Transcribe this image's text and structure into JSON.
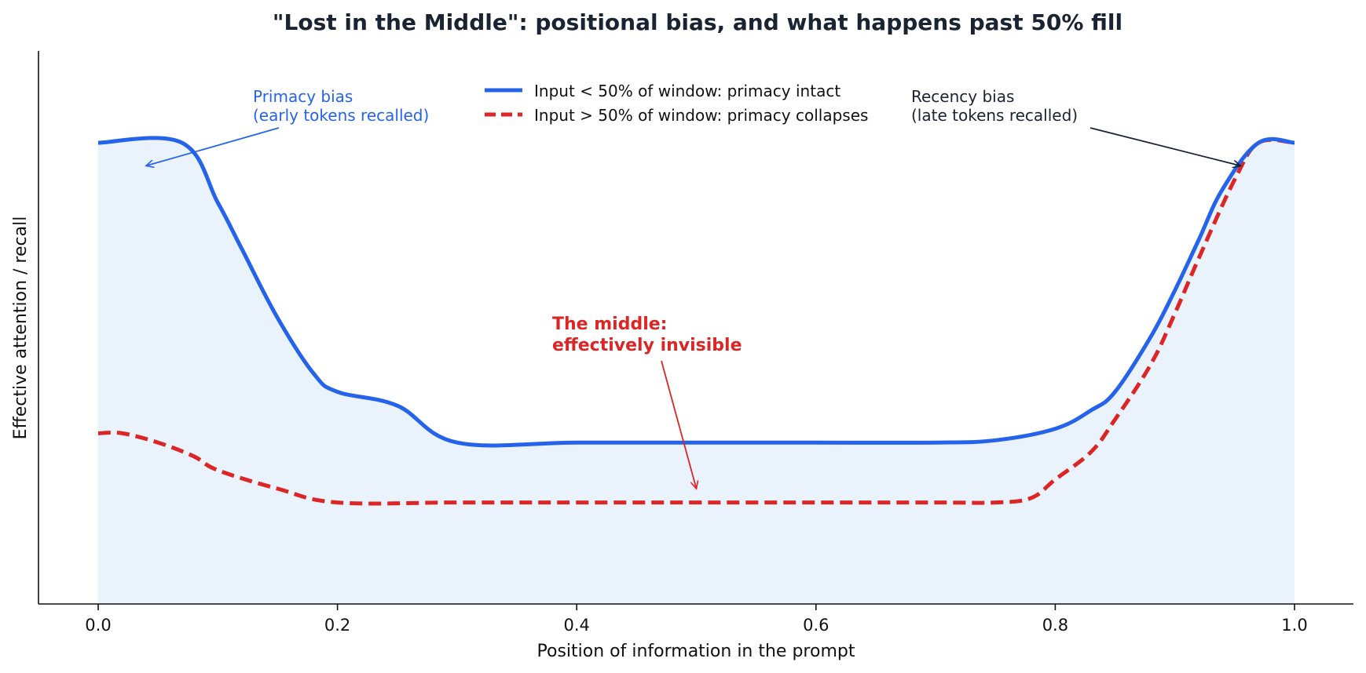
{
  "chart_data": {
    "type": "line",
    "title": "\"Lost in the Middle\": positional bias, and what happens past 50% fill",
    "xlabel": "Position of information in the prompt",
    "ylabel": "Effective attention / recall",
    "xlim": [
      -0.05,
      1.05
    ],
    "ylim": [
      0,
      1.2
    ],
    "xticks": [
      "0.0",
      "0.2",
      "0.4",
      "0.6",
      "0.8",
      "1.0"
    ],
    "yticks": [],
    "grid": false,
    "legend_position": "top-center",
    "series": [
      {
        "name": "Input < 50% of window: primacy intact",
        "color": "#2563eb",
        "style": "solid",
        "fill": "#eaf2fc",
        "x": [
          0.0,
          0.07,
          0.1,
          0.12,
          0.15,
          0.18,
          0.2,
          0.25,
          0.3,
          0.4,
          0.5,
          0.6,
          0.7,
          0.75,
          0.8,
          0.83,
          0.85,
          0.88,
          0.9,
          0.92,
          0.94,
          0.97,
          1.0
        ],
        "y": [
          1.0,
          1.0,
          0.87,
          0.77,
          0.62,
          0.5,
          0.46,
          0.43,
          0.35,
          0.35,
          0.35,
          0.35,
          0.35,
          0.355,
          0.38,
          0.42,
          0.46,
          0.58,
          0.68,
          0.79,
          0.9,
          1.0,
          1.0
        ]
      },
      {
        "name": "Input > 50% of window: primacy collapses",
        "color": "#dc2626",
        "style": "dashed",
        "x": [
          0.0,
          0.02,
          0.05,
          0.08,
          0.1,
          0.15,
          0.2,
          0.3,
          0.4,
          0.5,
          0.6,
          0.7,
          0.75,
          0.78,
          0.8,
          0.83,
          0.85,
          0.88,
          0.9,
          0.92,
          0.95,
          0.97,
          1.0
        ],
        "y": [
          0.37,
          0.37,
          0.35,
          0.32,
          0.29,
          0.25,
          0.22,
          0.22,
          0.22,
          0.22,
          0.22,
          0.22,
          0.22,
          0.23,
          0.27,
          0.33,
          0.4,
          0.52,
          0.63,
          0.75,
          0.92,
          1.0,
          1.0
        ]
      }
    ],
    "annotations": [
      {
        "lines": [
          "Primacy bias",
          "(early tokens recalled)"
        ],
        "color": "#2563eb",
        "bold": false,
        "target": [
          0.04,
          0.95
        ]
      },
      {
        "lines": [
          "Recency bias",
          "(late tokens recalled)"
        ],
        "color": "#1a2332",
        "bold": false,
        "target": [
          0.955,
          0.95
        ]
      },
      {
        "lines": [
          "The middle:",
          "effectively invisible"
        ],
        "color": "#dc2626",
        "bold": true,
        "target": [
          0.5,
          0.25
        ]
      }
    ]
  }
}
